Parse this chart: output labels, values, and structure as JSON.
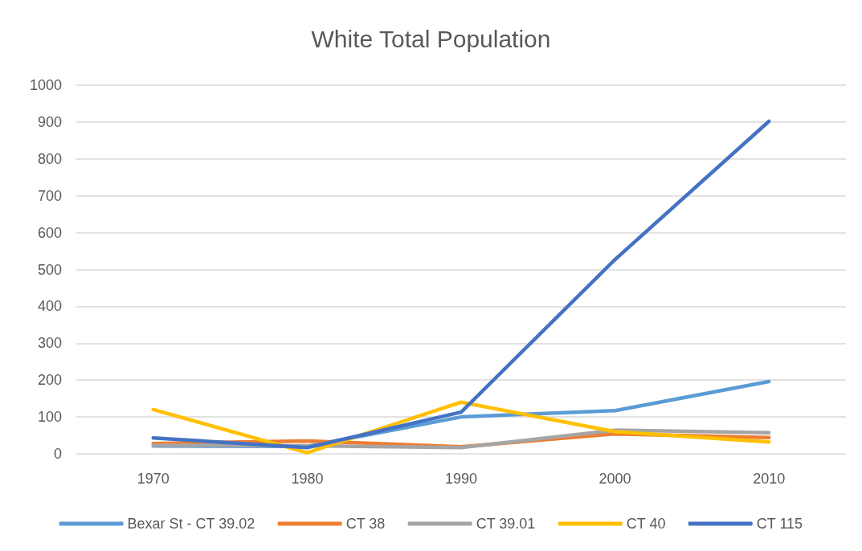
{
  "chart_data": {
    "type": "line",
    "title": "White Total Population",
    "categories": [
      "1970",
      "1980",
      "1990",
      "2000",
      "2010"
    ],
    "series": [
      {
        "name": "Bexar St - CT 39.02",
        "color": "#5b9bd5",
        "values": [
          21,
          20,
          100,
          117,
          196
        ]
      },
      {
        "name": "CT 38",
        "color": "#ed7d31",
        "values": [
          28,
          35,
          19,
          54,
          44
        ]
      },
      {
        "name": "CT 39.01",
        "color": "#a5a5a5",
        "values": [
          23,
          22,
          17,
          64,
          57
        ]
      },
      {
        "name": "CT 40",
        "color": "#ffc000",
        "values": [
          120,
          3,
          140,
          60,
          32
        ]
      },
      {
        "name": "CT 115",
        "color": "#4472c4",
        "values": [
          43,
          17,
          113,
          527,
          902
        ]
      }
    ],
    "ylim": [
      0,
      1000
    ],
    "yticks": [
      0,
      100,
      200,
      300,
      400,
      500,
      600,
      700,
      800,
      900,
      1000
    ],
    "grid": "y",
    "legend": "bottom",
    "marker": "none",
    "line_style": "solid"
  }
}
